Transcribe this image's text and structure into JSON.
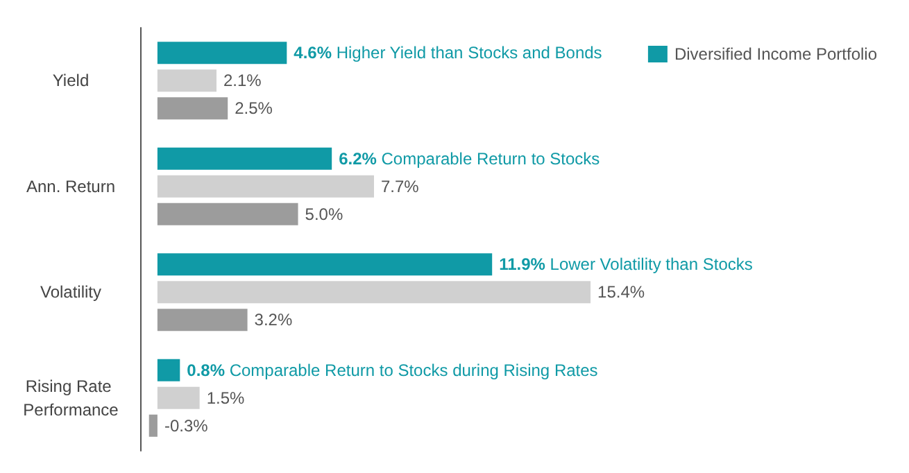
{
  "chart_data": {
    "type": "bar",
    "orientation": "horizontal",
    "categories": [
      "Yield",
      "Ann. Return",
      "Volatility",
      "Rising Rate Performance"
    ],
    "series": [
      {
        "name": "Diversified Income Portfolio",
        "color": "#109aa6",
        "values": [
          4.6,
          6.2,
          11.9,
          0.8
        ],
        "value_labels": [
          "4.6%",
          "6.2%",
          "11.9%",
          "0.8%"
        ]
      },
      {
        "color": "#d0d0d0",
        "values": [
          2.1,
          7.7,
          15.4,
          1.5
        ],
        "value_labels": [
          "2.1%",
          "7.7%",
          "15.4%",
          "1.5%"
        ]
      },
      {
        "color": "#9c9c9c",
        "values": [
          2.5,
          5.0,
          3.2,
          -0.3
        ],
        "value_labels": [
          "2.5%",
          "5.0%",
          "3.2%",
          "-0.3%"
        ]
      }
    ],
    "annotations": [
      "Higher Yield than Stocks and Bonds",
      "Comparable Return to Stocks",
      "Lower Volatility than Stocks",
      "Comparable Return to Stocks during Rising Rates"
    ],
    "tick_labels": "y",
    "legend": "top right"
  }
}
